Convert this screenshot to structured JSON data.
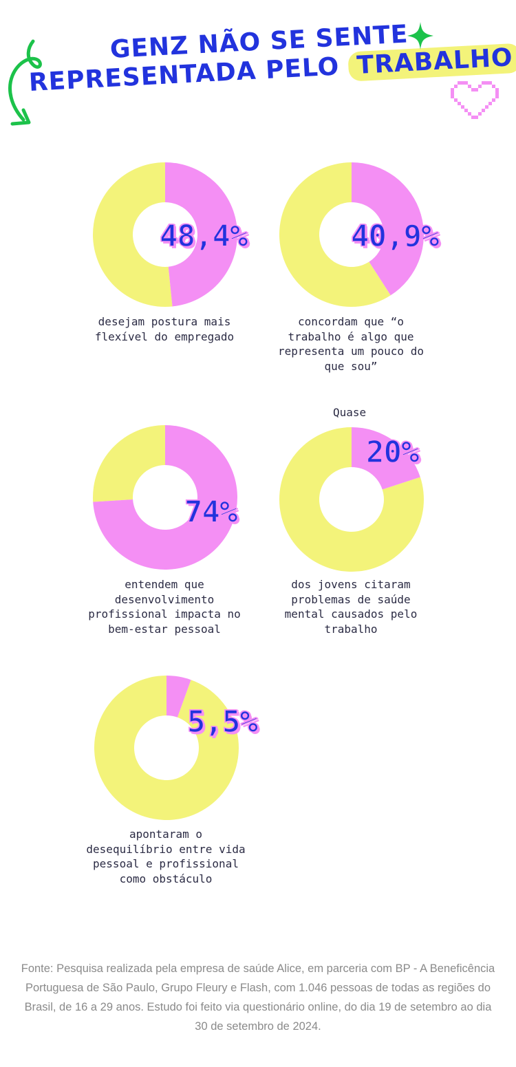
{
  "title": {
    "line1": "GENZ NÃO SE SENTE",
    "line2_prefix": "REPRESENTADA PELO",
    "line2_highlight": "TRABALHO"
  },
  "colors": {
    "title": "#2233dd",
    "pink": "#f48ff4",
    "yellow": "#f3f37a",
    "green": "#1cc24a",
    "caption": "#2b2b44",
    "source": "#8a8a8a"
  },
  "decorations": [
    "sparkle-icon",
    "curly-arrow-icon",
    "pixel-heart-icon"
  ],
  "chart_data": [
    {
      "type": "pie",
      "donut": true,
      "value": 48.4,
      "label": "48,4%",
      "caption": "desejam postura mais flexível do empregado",
      "colors": [
        "#f48ff4",
        "#f3f37a"
      ]
    },
    {
      "type": "pie",
      "donut": true,
      "value": 40.9,
      "label": "40,9%",
      "caption": "concordam que “o trabalho é algo que representa um pouco do que sou”",
      "colors": [
        "#f48ff4",
        "#f3f37a"
      ]
    },
    {
      "type": "pie",
      "donut": true,
      "value": 74,
      "label": "74%",
      "caption": "entendem que desenvolvimento profissional impacta no bem-estar pessoal",
      "colors": [
        "#f48ff4",
        "#f3f37a"
      ]
    },
    {
      "type": "pie",
      "donut": true,
      "value": 20,
      "label": "20%",
      "prefix": "Quase",
      "caption": "dos jovens citaram problemas de saúde mental causados pelo trabalho",
      "colors": [
        "#f48ff4",
        "#f3f37a"
      ]
    },
    {
      "type": "pie",
      "donut": true,
      "value": 5.5,
      "label": "5,5%",
      "caption": "apontaram o desequilíbrio entre vida pessoal e profissional como obstáculo",
      "colors": [
        "#f48ff4",
        "#f3f37a"
      ]
    }
  ],
  "source": "Fonte: Pesquisa realizada pela empresa de saúde Alice, em parceria com BP - A Beneficência Portuguesa de São Paulo, Grupo Fleury e Flash, com 1.046 pessoas de todas as regiões do Brasil, de 16 a 29 anos. Estudo foi feito via questionário online, do dia 19 de setembro ao dia 30 de setembro de 2024."
}
